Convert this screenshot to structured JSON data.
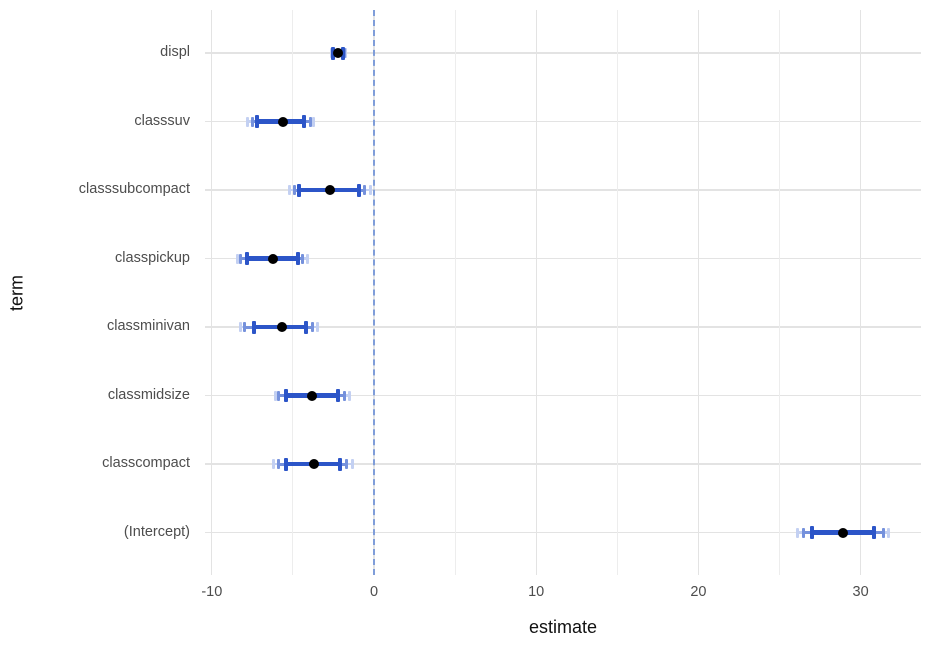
{
  "chart_data": {
    "type": "dot-whisker",
    "title": "",
    "xlabel": "estimate",
    "ylabel": "term",
    "x_major_ticks": [
      -10,
      0,
      10,
      20,
      30
    ],
    "x_minor_ticks": [
      -5,
      5,
      15,
      25
    ],
    "xlim": [
      -10.4,
      33.7
    ],
    "grid": true,
    "legend_position": "none",
    "reference_line": {
      "x": 0,
      "style": "dashed"
    },
    "series": [
      {
        "term": "displ",
        "estimate": -2.2,
        "ci_inner": [
          -2.5,
          -1.9
        ],
        "ci_middle": [
          -2.57,
          -1.83
        ],
        "ci_outer": [
          -2.63,
          -1.76
        ]
      },
      {
        "term": "classsuv",
        "estimate": -5.6,
        "ci_inner": [
          -7.2,
          -4.3
        ],
        "ci_middle": [
          -7.5,
          -3.9
        ],
        "ci_outer": [
          -7.8,
          -3.7
        ]
      },
      {
        "term": "classsubcompact",
        "estimate": -2.7,
        "ci_inner": [
          -4.6,
          -0.9
        ],
        "ci_middle": [
          -4.9,
          -0.6
        ],
        "ci_outer": [
          -5.2,
          -0.2
        ]
      },
      {
        "term": "classpickup",
        "estimate": -6.2,
        "ci_inner": [
          -7.8,
          -4.7
        ],
        "ci_middle": [
          -8.2,
          -4.4
        ],
        "ci_outer": [
          -8.4,
          -4.1
        ]
      },
      {
        "term": "classminivan",
        "estimate": -5.7,
        "ci_inner": [
          -7.4,
          -4.2
        ],
        "ci_middle": [
          -8.0,
          -3.8
        ],
        "ci_outer": [
          -8.2,
          -3.5
        ]
      },
      {
        "term": "classmidsize",
        "estimate": -3.8,
        "ci_inner": [
          -5.4,
          -2.2
        ],
        "ci_middle": [
          -5.9,
          -1.8
        ],
        "ci_outer": [
          -6.1,
          -1.5
        ]
      },
      {
        "term": "classcompact",
        "estimate": -3.7,
        "ci_inner": [
          -5.4,
          -2.1
        ],
        "ci_middle": [
          -5.9,
          -1.7
        ],
        "ci_outer": [
          -6.2,
          -1.3
        ]
      },
      {
        "term": "(Intercept)",
        "estimate": 28.9,
        "ci_inner": [
          27.0,
          30.8
        ],
        "ci_middle": [
          26.5,
          31.4
        ],
        "ci_outer": [
          26.1,
          31.7
        ]
      }
    ],
    "colors": {
      "point": "#000000",
      "ci_inner": "#2c55c8",
      "ci_middle": "#7591dc",
      "ci_outer": "#c3d0f2",
      "reference_line": "#7f9dd9",
      "grid_major": "#e3e3e3",
      "grid_minor": "#ededed"
    }
  }
}
